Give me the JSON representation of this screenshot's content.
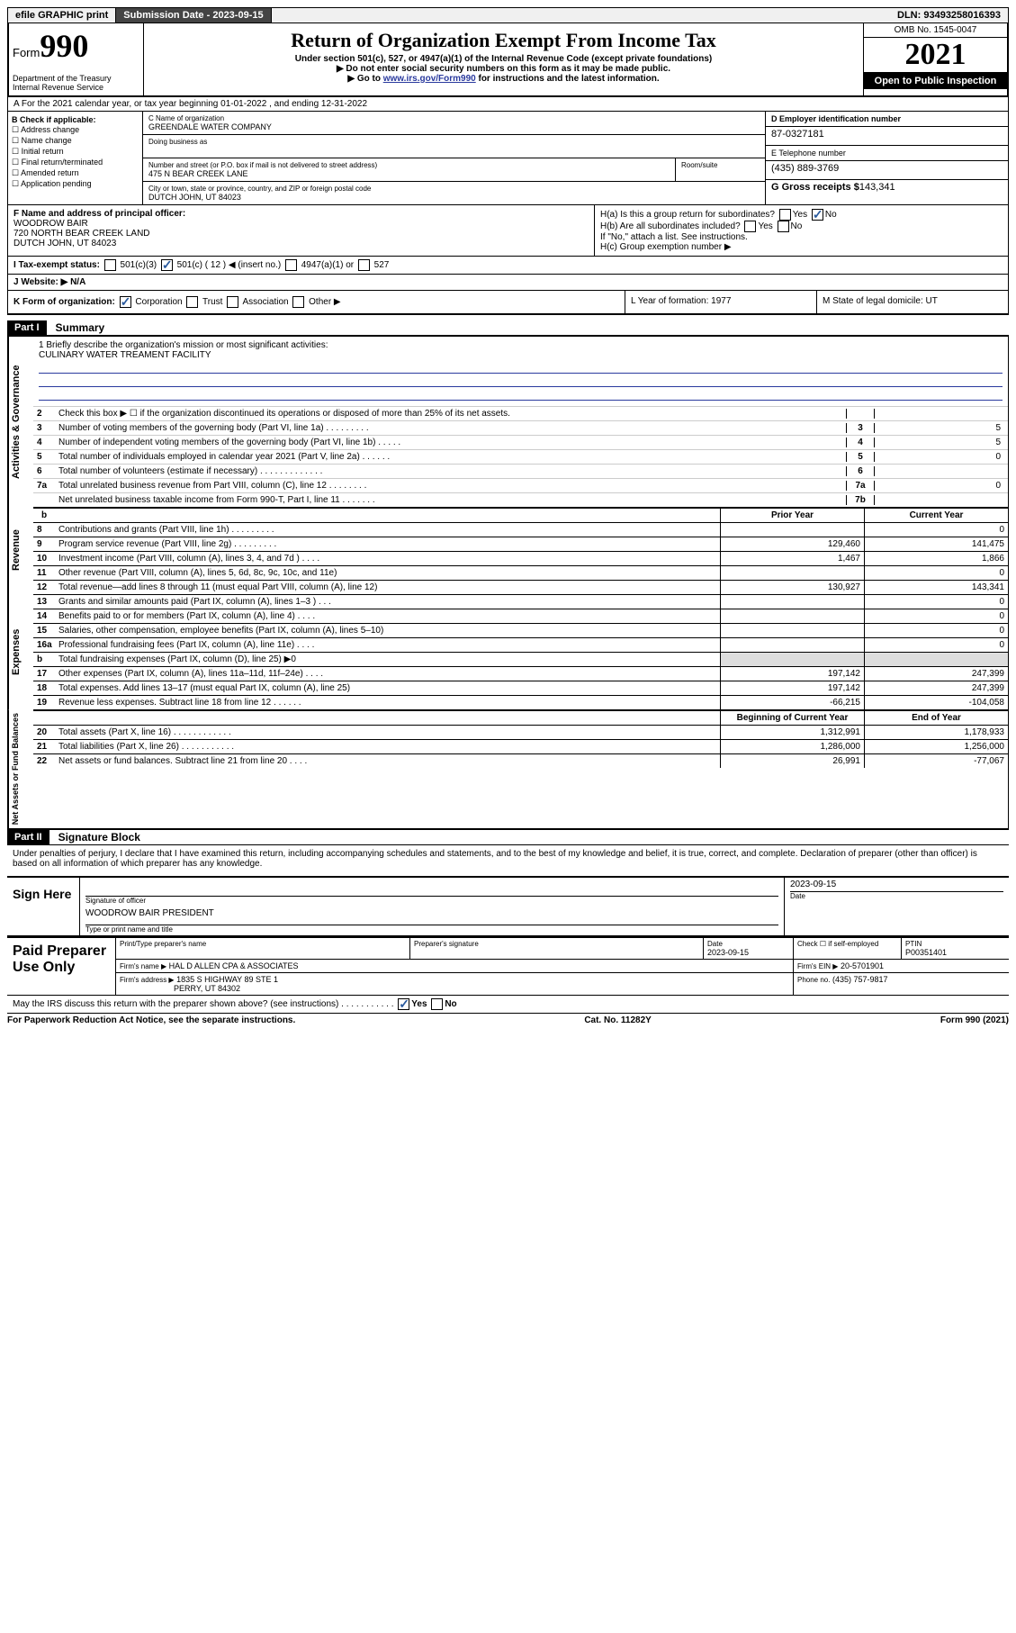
{
  "topbar": {
    "efile": "efile GRAPHIC print",
    "subdate_label": "Submission Date - ",
    "subdate": "2023-09-15",
    "dln": "DLN: 93493258016393"
  },
  "header": {
    "form_prefix": "Form",
    "form_no": "990",
    "dept": "Department of the Treasury Internal Revenue Service",
    "title": "Return of Organization Exempt From Income Tax",
    "sub1": "Under section 501(c), 527, or 4947(a)(1) of the Internal Revenue Code (except private foundations)",
    "sub2": "▶ Do not enter social security numbers on this form as it may be made public.",
    "sub3_pre": "▶ Go to ",
    "sub3_link": "www.irs.gov/Form990",
    "sub3_post": " for instructions and the latest information.",
    "omb": "OMB No. 1545-0047",
    "year": "2021",
    "open": "Open to Public Inspection"
  },
  "rowA": "A For the 2021 calendar year, or tax year beginning 01-01-2022  , and ending 12-31-2022",
  "colB": {
    "label": "B Check if applicable:",
    "items": [
      "Address change",
      "Name change",
      "Initial return",
      "Final return/terminated",
      "Amended return",
      "Application pending"
    ]
  },
  "colC": {
    "name_label": "C Name of organization",
    "name": "GREENDALE WATER COMPANY",
    "dba": "Doing business as",
    "street_label": "Number and street (or P.O. box if mail is not delivered to street address)",
    "street": "475 N BEAR CREEK LANE",
    "room_label": "Room/suite",
    "city_label": "City or town, state or province, country, and ZIP or foreign postal code",
    "city": "DUTCH JOHN, UT  84023"
  },
  "colD": {
    "ein_label": "D Employer identification number",
    "ein": "87-0327181",
    "phone_label": "E Telephone number",
    "phone": "(435) 889-3769",
    "gross_label": "G Gross receipts $",
    "gross": "143,341"
  },
  "lowerF": {
    "label": "F  Name and address of principal officer:",
    "name": "WOODROW BAIR",
    "addr1": "720 NORTH BEAR CREEK LAND",
    "addr2": "DUTCH JOHN, UT  84023"
  },
  "lowerH": {
    "ha": "H(a)  Is this a group return for subordinates?",
    "hb": "H(b)  Are all subordinates included?",
    "hnote": "If \"No,\" attach a list. See instructions.",
    "hc": "H(c)  Group exemption number ▶"
  },
  "taxI": {
    "label": "I  Tax-exempt status:",
    "o1": "501(c)(3)",
    "o2": "501(c) ( 12 ) ◀ (insert no.)",
    "o3": "4947(a)(1) or",
    "o4": "527"
  },
  "rowJ": "J  Website: ▶  N/A",
  "rowK": "K Form of organization:",
  "rowK_opts": [
    "Corporation",
    "Trust",
    "Association",
    "Other ▶"
  ],
  "rowL": "L Year of formation: 1977",
  "rowM": "M State of legal domicile: UT",
  "part1": {
    "head": "Part I",
    "title": "Summary"
  },
  "mission": {
    "q": "1  Briefly describe the organization's mission or most significant activities:",
    "a": "CULINARY WATER TREAMENT FACILITY"
  },
  "gov_lines": [
    {
      "n": "2",
      "t": "Check this box ▶ ☐  if the organization discontinued its operations or disposed of more than 25% of its net assets.",
      "b": "",
      "v": ""
    },
    {
      "n": "3",
      "t": "Number of voting members of the governing body (Part VI, line 1a)  .   .   .   .   .   .   .   .   .",
      "b": "3",
      "v": "5"
    },
    {
      "n": "4",
      "t": "Number of independent voting members of the governing body (Part VI, line 1b)  .   .   .   .   .",
      "b": "4",
      "v": "5"
    },
    {
      "n": "5",
      "t": "Total number of individuals employed in calendar year 2021 (Part V, line 2a)  .   .   .   .   .   .",
      "b": "5",
      "v": "0"
    },
    {
      "n": "6",
      "t": "Total number of volunteers (estimate if necessary)  .   .   .   .   .   .   .   .   .   .   .   .   .",
      "b": "6",
      "v": ""
    },
    {
      "n": "7a",
      "t": "Total unrelated business revenue from Part VIII, column (C), line 12  .   .   .   .   .   .   .   .",
      "b": "7a",
      "v": "0"
    },
    {
      "n": "",
      "t": "Net unrelated business taxable income from Form 990-T, Part I, line 11  .   .   .   .   .   .   .",
      "b": "7b",
      "v": ""
    }
  ],
  "rev_hdr": {
    "prior": "Prior Year",
    "curr": "Current Year"
  },
  "rev_lines": [
    {
      "n": "8",
      "t": "Contributions and grants (Part VIII, line 1h)  .   .   .   .   .   .   .   .   .",
      "p": "",
      "c": "0"
    },
    {
      "n": "9",
      "t": "Program service revenue (Part VIII, line 2g)  .   .   .   .   .   .   .   .   .",
      "p": "129,460",
      "c": "141,475"
    },
    {
      "n": "10",
      "t": "Investment income (Part VIII, column (A), lines 3, 4, and 7d )  .   .   .   .",
      "p": "1,467",
      "c": "1,866"
    },
    {
      "n": "11",
      "t": "Other revenue (Part VIII, column (A), lines 5, 6d, 8c, 9c, 10c, and 11e)",
      "p": "",
      "c": "0"
    },
    {
      "n": "12",
      "t": "Total revenue—add lines 8 through 11 (must equal Part VIII, column (A), line 12)",
      "p": "130,927",
      "c": "143,341"
    }
  ],
  "exp_lines": [
    {
      "n": "13",
      "t": "Grants and similar amounts paid (Part IX, column (A), lines 1–3 )  .   .   .",
      "p": "",
      "c": "0"
    },
    {
      "n": "14",
      "t": "Benefits paid to or for members (Part IX, column (A), line 4)  .   .   .   .",
      "p": "",
      "c": "0"
    },
    {
      "n": "15",
      "t": "Salaries, other compensation, employee benefits (Part IX, column (A), lines 5–10)",
      "p": "",
      "c": "0"
    },
    {
      "n": "16a",
      "t": "Professional fundraising fees (Part IX, column (A), line 11e)  .   .   .   .",
      "p": "",
      "c": "0"
    },
    {
      "n": "b",
      "t": "Total fundraising expenses (Part IX, column (D), line 25) ▶0",
      "p": "shade",
      "c": "shade"
    },
    {
      "n": "17",
      "t": "Other expenses (Part IX, column (A), lines 11a–11d, 11f–24e)  .   .   .   .",
      "p": "197,142",
      "c": "247,399"
    },
    {
      "n": "18",
      "t": "Total expenses. Add lines 13–17 (must equal Part IX, column (A), line 25)",
      "p": "197,142",
      "c": "247,399"
    },
    {
      "n": "19",
      "t": "Revenue less expenses. Subtract line 18 from line 12  .   .   .   .   .   .",
      "p": "-66,215",
      "c": "-104,058"
    }
  ],
  "na_hdr": {
    "beg": "Beginning of Current Year",
    "end": "End of Year"
  },
  "na_lines": [
    {
      "n": "20",
      "t": "Total assets (Part X, line 16)  .   .   .   .   .   .   .   .   .   .   .   .",
      "p": "1,312,991",
      "c": "1,178,933"
    },
    {
      "n": "21",
      "t": "Total liabilities (Part X, line 26)  .   .   .   .   .   .   .   .   .   .   .",
      "p": "1,286,000",
      "c": "1,256,000"
    },
    {
      "n": "22",
      "t": "Net assets or fund balances. Subtract line 21 from line 20  .   .   .   .",
      "p": "26,991",
      "c": "-77,067"
    }
  ],
  "sidebars": {
    "gov": "Activities & Governance",
    "rev": "Revenue",
    "exp": "Expenses",
    "na": "Net Assets or Fund Balances"
  },
  "part2": {
    "head": "Part II",
    "title": "Signature Block",
    "declare": "Under penalties of perjury, I declare that I have examined this return, including accompanying schedules and statements, and to the best of my knowledge and belief, it is true, correct, and complete. Declaration of preparer (other than officer) is based on all information of which preparer has any knowledge."
  },
  "sign": {
    "here": "Sign Here",
    "sig_label": "Signature of officer",
    "date": "2023-09-15",
    "date_label": "Date",
    "name": "WOODROW BAIR  PRESIDENT",
    "name_label": "Type or print name and title"
  },
  "prep": {
    "here": "Paid Preparer Use Only",
    "h1": "Print/Type preparer's name",
    "h2": "Preparer's signature",
    "h3": "Date",
    "h3v": "2023-09-15",
    "h4": "Check ☐ if self-employed",
    "h5": "PTIN",
    "h5v": "P00351401",
    "firm_label": "Firm's name     ▶",
    "firm": "HAL D ALLEN CPA & ASSOCIATES",
    "ein_label": "Firm's EIN ▶",
    "ein": "20-5701901",
    "addr_label": "Firm's address ▶",
    "addr1": "1835 S HIGHWAY 89 STE 1",
    "addr2": "PERRY, UT  84302",
    "phone_label": "Phone no.",
    "phone": "(435) 757-9817"
  },
  "may": "May the IRS discuss this return with the preparer shown above? (see instructions)   .   .   .   .   .   .   .   .   .   .   .",
  "footer": {
    "left": "For Paperwork Reduction Act Notice, see the separate instructions.",
    "mid": "Cat. No. 11282Y",
    "right": "Form 990 (2021)"
  }
}
